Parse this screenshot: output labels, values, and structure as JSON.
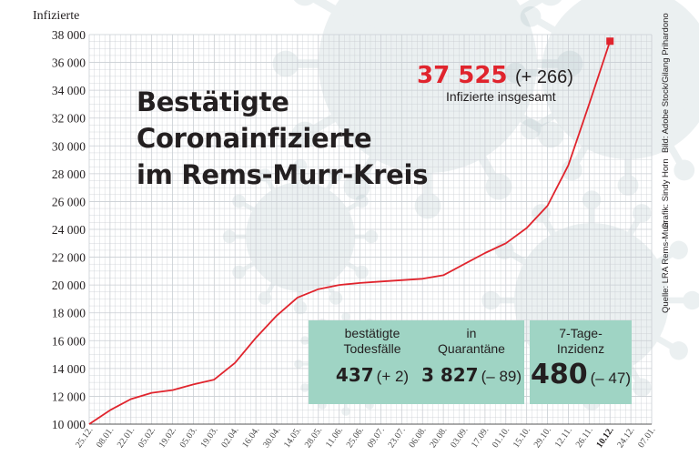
{
  "chart_data": {
    "type": "line",
    "title_lines": [
      "Bestätigte",
      "Coronainfizierte",
      "im Rems-Murr-Kreis"
    ],
    "ylabel": "Infizierte",
    "ylim": [
      10000,
      38000
    ],
    "yticks": [
      10000,
      12000,
      14000,
      16000,
      18000,
      20000,
      22000,
      24000,
      26000,
      28000,
      30000,
      32000,
      34000,
      36000,
      38000
    ],
    "ytick_labels": [
      "10 000",
      "12 000",
      "14 000",
      "16 000",
      "18 000",
      "20 000",
      "22 000",
      "24 000",
      "26 000",
      "28 000",
      "30 000",
      "32 000",
      "34 000",
      "36 000",
      "38 000"
    ],
    "xtick_labels": [
      "25.12.",
      "08.01.",
      "22.01.",
      "05.02.",
      "19.02.",
      "05.03.",
      "19.03.",
      "02.04.",
      "16.04.",
      "30.04.",
      "14.05.",
      "28.05.",
      "11.06.",
      "25.06.",
      "09.07.",
      "23.07.",
      "06.08.",
      "20.08.",
      "03.09.",
      "17.09.",
      "01.10.",
      "15.10.",
      "29.10.",
      "12.11.",
      "26.11.",
      "10.12.",
      "24.12.",
      "07.01."
    ],
    "highlight_xtick": "10.12.",
    "grid": true,
    "series": [
      {
        "color": "#e0242d",
        "points": [
          [
            "25.12.",
            10000
          ],
          [
            "08.01.",
            11000
          ],
          [
            "22.01.",
            11800
          ],
          [
            "05.02.",
            12250
          ],
          [
            "19.02.",
            12450
          ],
          [
            "05.03.",
            12850
          ],
          [
            "19.03.",
            13200
          ],
          [
            "02.04.",
            14400
          ],
          [
            "16.04.",
            16200
          ],
          [
            "30.04.",
            17800
          ],
          [
            "14.05.",
            19100
          ],
          [
            "28.05.",
            19700
          ],
          [
            "11.06.",
            20000
          ],
          [
            "25.06.",
            20150
          ],
          [
            "09.07.",
            20250
          ],
          [
            "23.07.",
            20350
          ],
          [
            "06.08.",
            20450
          ],
          [
            "20.08.",
            20700
          ],
          [
            "03.09.",
            21500
          ],
          [
            "17.09.",
            22300
          ],
          [
            "01.10.",
            23000
          ],
          [
            "15.10.",
            24100
          ],
          [
            "29.10.",
            25700
          ],
          [
            "12.11.",
            28600
          ],
          [
            "26.11.",
            33000
          ],
          [
            "10.12.",
            37525
          ]
        ]
      }
    ],
    "marker": {
      "x": "10.12.",
      "y": 37525,
      "shape": "square"
    }
  },
  "total": {
    "value": "37 525",
    "delta": "(+ 266)",
    "label": "Infizierte insgesamt"
  },
  "stats": [
    {
      "label_lines": [
        "bestätigte",
        "Todesfälle"
      ],
      "value": "437",
      "delta": "(+ 2)"
    },
    {
      "label_lines": [
        "in",
        "Quarantäne"
      ],
      "value": "3 827",
      "delta": "(– 89)"
    },
    {
      "label_lines": [
        "7-Tage-",
        "Inzidenz"
      ],
      "value": "480",
      "delta": "(– 47)"
    }
  ],
  "credits": [
    "Quelle: LRA Rems-Murr",
    "Grafik: Sindy Horn",
    "Bild: Adobe Stock/Gilang Prihardono"
  ],
  "colors": {
    "line": "#e0242d",
    "grid": "#c9ced3",
    "box": "#9fd4c4",
    "text": "#231f20"
  }
}
